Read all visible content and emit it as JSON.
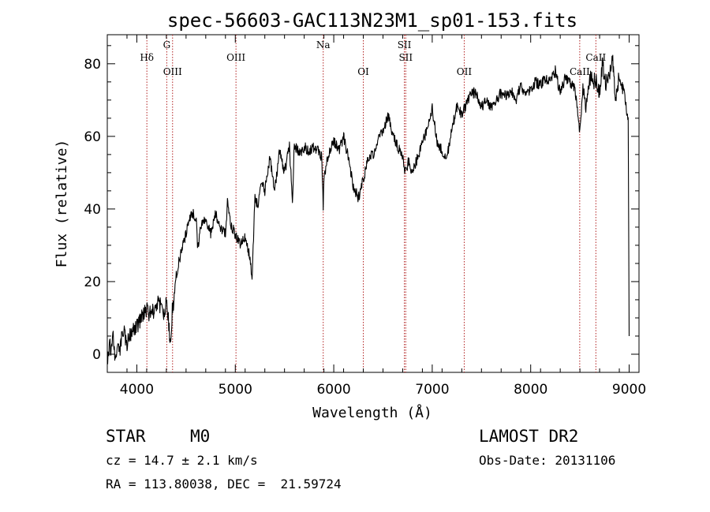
{
  "header": {
    "title": "spec-56603-GAC113N23M1_sp01-153.fits"
  },
  "info": {
    "class": "STAR",
    "subclass": "M0",
    "cz": "cz = 14.7 ± 2.1 km/s",
    "coords": "RA = 113.80038, DEC =  21.59724",
    "survey": "LAMOST DR2",
    "obs_date": "Obs-Date: 20131106"
  },
  "chart_data": {
    "type": "line",
    "title": "spec-56603-GAC113N23M1_sp01-153.fits",
    "xlabel": "Wavelength (Å)",
    "ylabel": "Flux (relative)",
    "xlim": [
      3700,
      9100
    ],
    "ylim": [
      -5,
      88
    ],
    "x_ticks": [
      4000,
      5000,
      6000,
      7000,
      8000,
      9000
    ],
    "y_ticks": [
      0,
      20,
      40,
      60,
      80
    ],
    "grid": false,
    "line_color": "#000000",
    "marker_color": "#b22222",
    "spectral_lines": [
      {
        "label": "Hδ",
        "wavelength": 4102,
        "row": "top"
      },
      {
        "label": "G",
        "wavelength": 4304,
        "row": "upper"
      },
      {
        "label": "OIII",
        "wavelength": 4363,
        "row": "low"
      },
      {
        "label": "OIII",
        "wavelength": 5007,
        "row": "top"
      },
      {
        "label": "Na",
        "wavelength": 5893,
        "row": "upper"
      },
      {
        "label": "OI",
        "wavelength": 6300,
        "row": "low"
      },
      {
        "label": "SII",
        "wavelength": 6717,
        "row": "upper"
      },
      {
        "label": "SII",
        "wavelength": 6731,
        "row": "top"
      },
      {
        "label": "OII",
        "wavelength": 7325,
        "row": "low"
      },
      {
        "label": "CaII",
        "wavelength": 8498,
        "row": "low"
      },
      {
        "label": "CaII",
        "wavelength": 8662,
        "row": "top"
      }
    ],
    "series": [
      {
        "x": [
          3700,
          3720,
          3740,
          3760,
          3780,
          3800,
          3830,
          3860,
          3900,
          3950,
          4000,
          4050,
          4100,
          4150,
          4200,
          4250,
          4280,
          4300,
          4320,
          4340,
          4360,
          4380,
          4400,
          4450,
          4500,
          4550,
          4600,
          4620,
          4650,
          4700,
          4750,
          4800,
          4850,
          4900,
          4920,
          4950,
          5000,
          5050,
          5100,
          5150,
          5170,
          5200,
          5230,
          5260,
          5300,
          5350,
          5400,
          5450,
          5500,
          5550,
          5580,
          5600,
          5650,
          5700,
          5750,
          5800,
          5850,
          5880,
          5893,
          5900,
          5950,
          6000,
          6050,
          6100,
          6150,
          6200,
          6250,
          6300,
          6350,
          6400,
          6450,
          6500,
          6560,
          6600,
          6650,
          6700,
          6720,
          6760,
          6800,
          6850,
          6900,
          6950,
          7000,
          7050,
          7100,
          7150,
          7200,
          7250,
          7300,
          7350,
          7400,
          7450,
          7500,
          7550,
          7600,
          7650,
          7700,
          7750,
          7800,
          7850,
          7900,
          7950,
          8000,
          8050,
          8100,
          8150,
          8200,
          8250,
          8300,
          8350,
          8400,
          8450,
          8498,
          8530,
          8560,
          8600,
          8662,
          8700,
          8730,
          8760,
          8800,
          8830,
          8860,
          8900,
          8930,
          8960,
          8990,
          9000
        ],
        "y": [
          -4,
          3,
          0,
          6,
          -2,
          4,
          1,
          7,
          3,
          6,
          8,
          10,
          12,
          11,
          14,
          13,
          10,
          15,
          9,
          2,
          12,
          16,
          22,
          28,
          33,
          39,
          38,
          29,
          35,
          37,
          33,
          39,
          35,
          33,
          42,
          36,
          33,
          30,
          32,
          27,
          20,
          44,
          40,
          48,
          45,
          54,
          45,
          56,
          50,
          57,
          42,
          58,
          55,
          57,
          56,
          57,
          56,
          54,
          40,
          49,
          55,
          59,
          56,
          60,
          54,
          46,
          43,
          48,
          54,
          55,
          59,
          62,
          66,
          60,
          57,
          55,
          50,
          53,
          50,
          54,
          58,
          62,
          68,
          58,
          56,
          54,
          62,
          68,
          66,
          69,
          72,
          72,
          68,
          70,
          68,
          70,
          72,
          71,
          73,
          70,
          74,
          71,
          73,
          75,
          74,
          76,
          75,
          78,
          72,
          76,
          75,
          73,
          61,
          74,
          68,
          76,
          75,
          72,
          80,
          74,
          76,
          82,
          71,
          76,
          74,
          70,
          64,
          5
        ]
      }
    ]
  }
}
